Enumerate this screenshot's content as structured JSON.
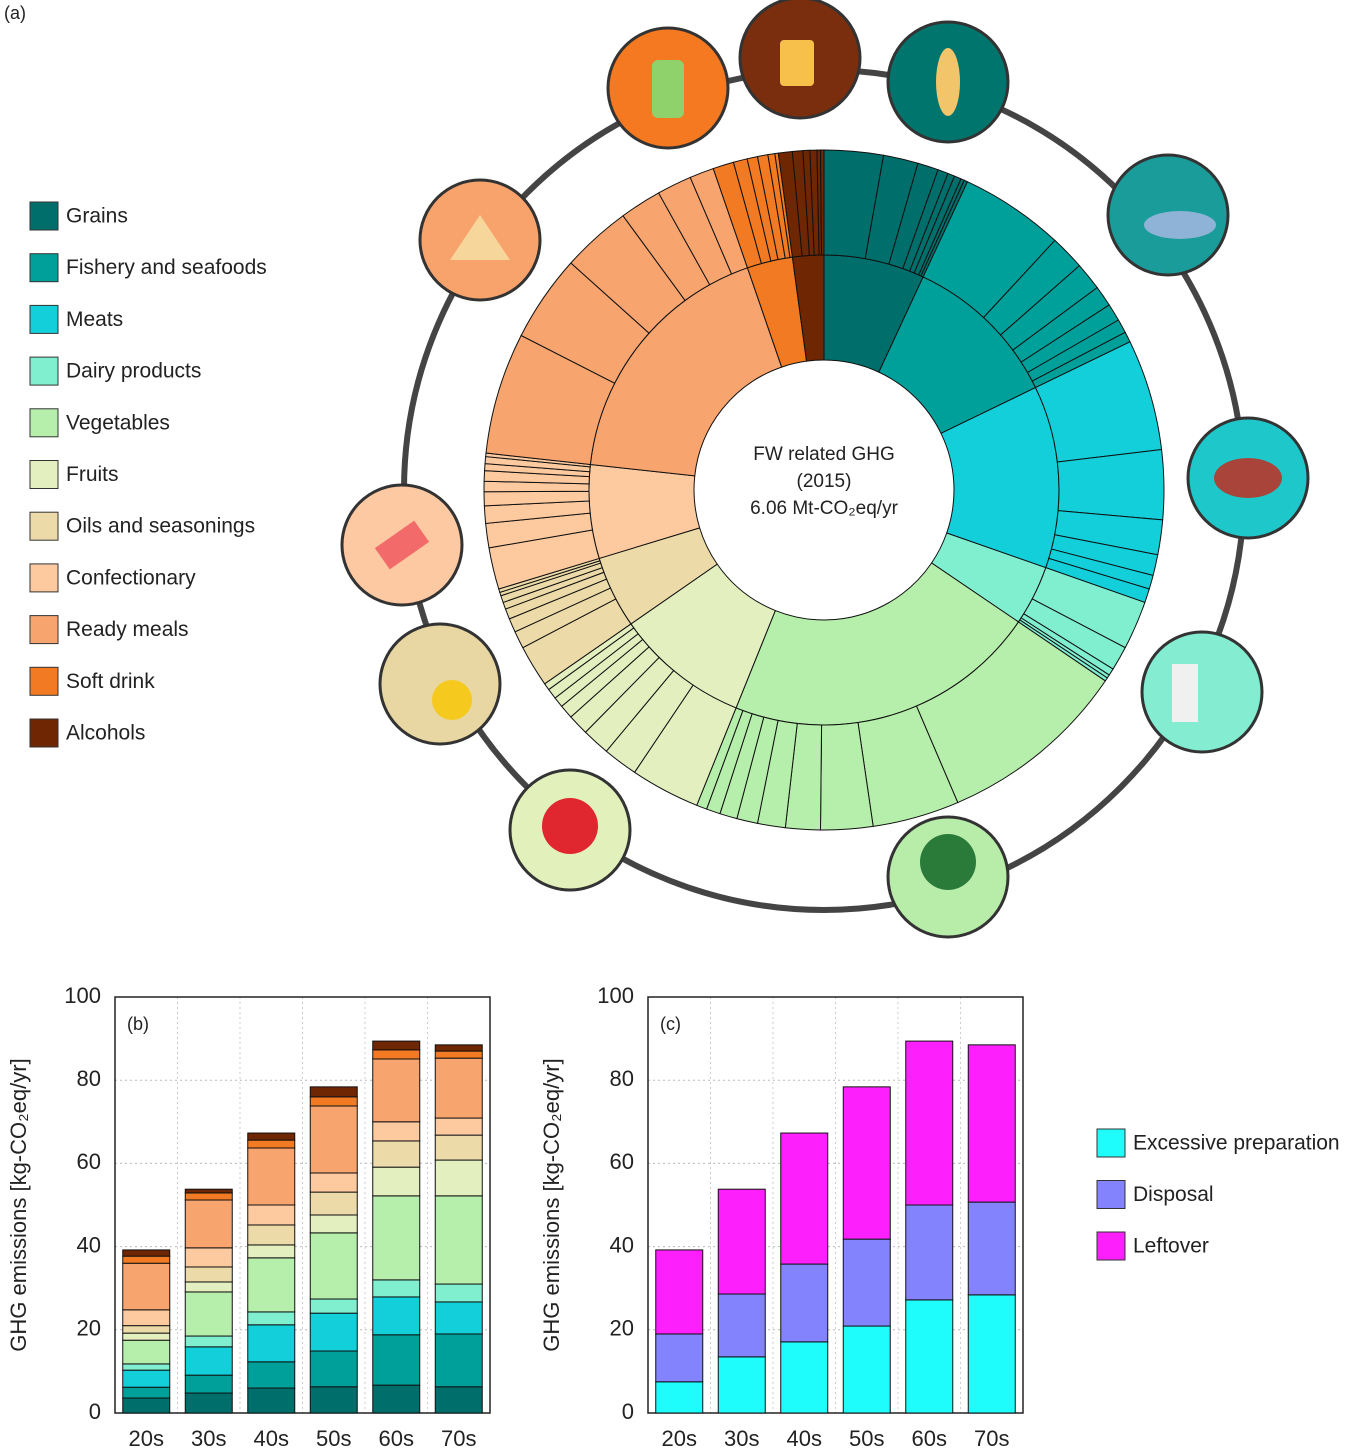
{
  "chart_data": [
    {
      "type": "sunburst",
      "label": "(a)",
      "center_text": [
        "FW related GHG",
        "(2015)",
        "6.06 Mt-CO₂eq/yr"
      ],
      "categories": [
        "Grains",
        "Fishery and seafoods",
        "Meats",
        "Dairy products",
        "Vegetables",
        "Fruits",
        "Oils and seasonings",
        "Confectionary",
        "Ready meals",
        "Soft drink",
        "Alcohols"
      ],
      "colors": [
        "#006e6b",
        "#00a09a",
        "#12cfd9",
        "#80efd0",
        "#b6eeab",
        "#e3efbf",
        "#ecdba8",
        "#fdcaa0",
        "#f8a46e",
        "#f27a22",
        "#6f2603"
      ],
      "values": [
        0.42,
        0.66,
        0.76,
        0.25,
        1.31,
        0.56,
        0.3,
        0.39,
        1.09,
        0.19,
        0.13
      ],
      "sub_values": [
        [
          0.17,
          0.1,
          0.06,
          0.03,
          0.02,
          0.02,
          0.01,
          0.01
        ],
        [
          0.3,
          0.1,
          0.08,
          0.06,
          0.05,
          0.04,
          0.03
        ],
        [
          0.32,
          0.2,
          0.1,
          0.06,
          0.04,
          0.04
        ],
        [
          0.14,
          0.07,
          0.02,
          0.01,
          0.01
        ],
        [
          0.55,
          0.25,
          0.15,
          0.1,
          0.08,
          0.06,
          0.05,
          0.04,
          0.03
        ],
        [
          0.2,
          0.1,
          0.08,
          0.06,
          0.04,
          0.03,
          0.03,
          0.02
        ],
        [
          0.12,
          0.05,
          0.04,
          0.03,
          0.02,
          0.02,
          0.01,
          0.01
        ],
        [
          0.12,
          0.07,
          0.05,
          0.04,
          0.03,
          0.03,
          0.02,
          0.02,
          0.01
        ],
        [
          0.35,
          0.25,
          0.2,
          0.12,
          0.1,
          0.07
        ],
        [
          0.06,
          0.04,
          0.03,
          0.03,
          0.02,
          0.01
        ],
        [
          0.04,
          0.03,
          0.02,
          0.02,
          0.01,
          0.01
        ]
      ]
    },
    {
      "type": "stacked_bar",
      "label": "(b)",
      "y_label": "GHG emissions [kg-CO₂eq/yr]",
      "categories": [
        "20s",
        "30s",
        "40s",
        "50s",
        "60s",
        "70s"
      ],
      "ylim": [
        0,
        100
      ],
      "yticks": [
        0,
        20,
        40,
        60,
        80,
        100
      ],
      "grid": true,
      "series": [
        {
          "values": [
            3.6,
            4.8,
            6,
            6.3,
            6.7,
            6.3
          ]
        },
        {
          "values": [
            2.6,
            4.3,
            6.3,
            8.6,
            12.1,
            12.7
          ]
        },
        {
          "values": [
            4.1,
            6.8,
            8.9,
            9.1,
            9.1,
            7.7
          ]
        },
        {
          "values": [
            1.5,
            2.6,
            3.1,
            3.4,
            4.1,
            4.3
          ]
        },
        {
          "values": [
            5.7,
            10.6,
            13,
            15.9,
            20.2,
            21.2
          ]
        },
        {
          "values": [
            1.7,
            2.4,
            3.1,
            4.3,
            6.9,
            8.6
          ]
        },
        {
          "values": [
            1.8,
            3.6,
            4.8,
            5.5,
            6.3,
            6
          ]
        },
        {
          "values": [
            3.8,
            4.6,
            4.8,
            4.6,
            4.6,
            4.1
          ]
        },
        {
          "values": [
            11.2,
            11.5,
            13.7,
            16.1,
            15.1,
            14.4
          ]
        },
        {
          "values": [
            1.7,
            1.7,
            1.9,
            2.2,
            2.2,
            1.7
          ]
        },
        {
          "values": [
            1.5,
            0.9,
            1.7,
            2.4,
            2.1,
            1.5
          ]
        }
      ]
    },
    {
      "type": "stacked_bar",
      "label": "(c)",
      "y_label": "GHG emissions [kg-CO₂eq/yr]",
      "categories": [
        "20s",
        "30s",
        "40s",
        "50s",
        "60s",
        "70s"
      ],
      "ylim": [
        0,
        100
      ],
      "yticks": [
        0,
        20,
        40,
        60,
        80,
        100
      ],
      "grid": true,
      "series": [
        {
          "name": "Excessive preparation",
          "color": "#1ffcfc",
          "values": [
            7.5,
            13.5,
            17.1,
            20.9,
            27.2,
            28.4
          ]
        },
        {
          "name": "Disposal",
          "color": "#8383fd",
          "values": [
            11.5,
            15.1,
            18.7,
            20.9,
            22.8,
            22.3
          ]
        },
        {
          "name": "Leftover",
          "color": "#fd1ffc",
          "values": [
            20.2,
            25.2,
            31.5,
            36.6,
            39.4,
            37.8
          ]
        }
      ]
    }
  ]
}
